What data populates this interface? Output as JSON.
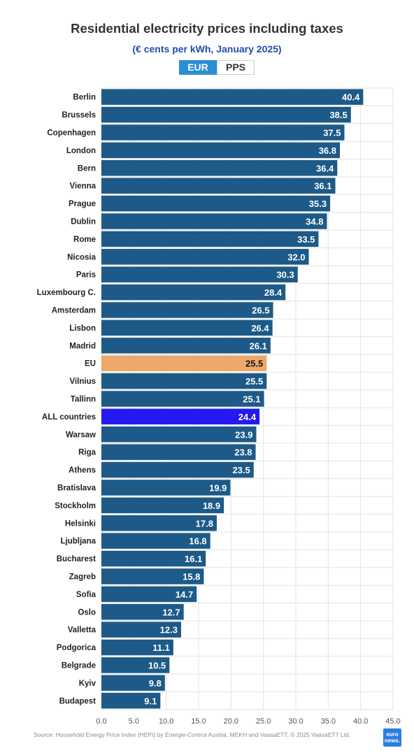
{
  "title": "Residential electricity prices including taxes",
  "subtitle": "(€ cents per kWh, January 2025)",
  "toggle": {
    "active": "EUR",
    "inactive": "PPS"
  },
  "source": "Source: Household Energy Price Index (HEPI) by Energie-Control Austria, MEKH and VaasaETT, © 2025 VaasaETT Ltd.",
  "logo": {
    "line1": "euro",
    "line2": "news."
  },
  "colors": {
    "bar": "#1d5a87",
    "eu": "#eda86a",
    "all": "#2419f0",
    "grid": "#e3e3e3"
  },
  "chart_data": {
    "type": "bar",
    "orientation": "horizontal",
    "xlim": [
      0,
      45
    ],
    "xticks": [
      "0.0",
      "5.0",
      "10.0",
      "15.0",
      "20.0",
      "25.0",
      "30.0",
      "35.0",
      "40.0",
      "45.0"
    ],
    "grid": true,
    "categories": [
      "Berlin",
      "Brussels",
      "Copenhagen",
      "London",
      "Bern",
      "Vienna",
      "Prague",
      "Dublin",
      "Rome",
      "Nicosia",
      "Paris",
      "Luxembourg C.",
      "Amsterdam",
      "Lisbon",
      "Madrid",
      "EU",
      "Vilnius",
      "Tallinn",
      "ALL countries",
      "Warsaw",
      "Riga",
      "Athens",
      "Bratislava",
      "Stockholm",
      "Helsinki",
      "Ljubljana",
      "Bucharest",
      "Zagreb",
      "Sofia",
      "Oslo",
      "Valletta",
      "Podgorica",
      "Belgrade",
      "Kyiv",
      "Budapest"
    ],
    "values": [
      40.4,
      38.5,
      37.5,
      36.8,
      36.4,
      36.1,
      35.3,
      34.8,
      33.5,
      32.0,
      30.3,
      28.4,
      26.5,
      26.4,
      26.1,
      25.5,
      25.5,
      25.1,
      24.4,
      23.9,
      23.8,
      23.5,
      19.9,
      18.9,
      17.8,
      16.8,
      16.1,
      15.8,
      14.7,
      12.7,
      12.3,
      11.1,
      10.5,
      9.8,
      9.1
    ],
    "labels": [
      "40.4",
      "38.5",
      "37.5",
      "36.8",
      "36.4",
      "36.1",
      "35.3",
      "34.8",
      "33.5",
      "32.0",
      "30.3",
      "28.4",
      "26.5",
      "26.4",
      "26.1",
      "25.5",
      "25.5",
      "25.1",
      "24.4",
      "23.9",
      "23.8",
      "23.5",
      "19.9",
      "18.9",
      "17.8",
      "16.8",
      "16.1",
      "15.8",
      "14.7",
      "12.7",
      "12.3",
      "11.1",
      "10.5",
      "9.8",
      "9.1"
    ],
    "highlights": {
      "EU": "eu",
      "ALL countries": "all"
    }
  }
}
